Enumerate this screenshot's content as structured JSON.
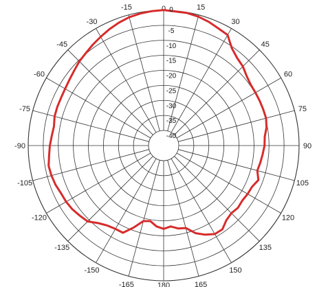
{
  "chart_data": {
    "type": "line",
    "subtype": "polar",
    "title": "",
    "grid": true,
    "colors": {
      "series": "#d72b2b",
      "grid": "#333333",
      "background": "#ffffff"
    },
    "angular_ticks": [
      {
        "angle": 0,
        "label": "0"
      },
      {
        "angle": 15,
        "label": "15"
      },
      {
        "angle": 30,
        "label": "30"
      },
      {
        "angle": 45,
        "label": "45"
      },
      {
        "angle": 60,
        "label": "60"
      },
      {
        "angle": 75,
        "label": "75"
      },
      {
        "angle": 90,
        "label": "90"
      },
      {
        "angle": 105,
        "label": "105"
      },
      {
        "angle": 120,
        "label": "120"
      },
      {
        "angle": 135,
        "label": "135"
      },
      {
        "angle": 150,
        "label": "150"
      },
      {
        "angle": 165,
        "label": "165"
      },
      {
        "angle": 180,
        "label": "180"
      },
      {
        "angle": -165,
        "label": "-165"
      },
      {
        "angle": -150,
        "label": "-150"
      },
      {
        "angle": -135,
        "label": "-135"
      },
      {
        "angle": -120,
        "label": "-120"
      },
      {
        "angle": -105,
        "label": "-105"
      },
      {
        "angle": -90,
        "label": "-90"
      },
      {
        "angle": -75,
        "label": "-75"
      },
      {
        "angle": -60,
        "label": "-60"
      },
      {
        "angle": -45,
        "label": "-45"
      },
      {
        "angle": -30,
        "label": "-30"
      },
      {
        "angle": -15,
        "label": "-15"
      }
    ],
    "radial_ticks": [
      {
        "value": 0,
        "label": "0"
      },
      {
        "value": -5,
        "label": "-5"
      },
      {
        "value": -10,
        "label": "-10"
      },
      {
        "value": -15,
        "label": "-15"
      },
      {
        "value": -20,
        "label": "-20"
      },
      {
        "value": -25,
        "label": "-25"
      },
      {
        "value": -30,
        "label": "-30"
      },
      {
        "value": -35,
        "label": "-35"
      },
      {
        "value": -40,
        "label": "-40"
      }
    ],
    "rlim": [
      -40,
      0
    ],
    "series": [
      {
        "angles": [
          0,
          10,
          15,
          20,
          25,
          30,
          35,
          40,
          45,
          50,
          55,
          60,
          65,
          70,
          75,
          80,
          85,
          90,
          95,
          100,
          105,
          110,
          115,
          120,
          125,
          130,
          135,
          140,
          145,
          150,
          155,
          160,
          165,
          170,
          175,
          180,
          185,
          190,
          195,
          200,
          205,
          210,
          215,
          220,
          225,
          230,
          235,
          240,
          245,
          250,
          255,
          260,
          265,
          270,
          275,
          280,
          285,
          290,
          295,
          300,
          305,
          310,
          315,
          320,
          325,
          330,
          335,
          340,
          345,
          350,
          355,
          360
        ],
        "values": [
          0.1,
          -0.2,
          -0.6,
          -1.2,
          -2.0,
          -2.5,
          -5.5,
          -7.0,
          -7.8,
          -9.0,
          -9.7,
          -9.8,
          -9.8,
          -9.8,
          -9.8,
          -10.3,
          -11.3,
          -11.5,
          -12.0,
          -12.4,
          -12.8,
          -11.5,
          -12.6,
          -12.8,
          -13.1,
          -12.8,
          -13.2,
          -12.6,
          -11.0,
          -11.0,
          -12.3,
          -14.0,
          -16.6,
          -17.0,
          -18.0,
          -17.3,
          -18.0,
          -19.5,
          -19.0,
          -16.0,
          -13.0,
          -13.0,
          -12.5,
          -11.3,
          -9.3,
          -8.7,
          -8.0,
          -7.6,
          -7.4,
          -6.8,
          -6.4,
          -6.2,
          -6.8,
          -7.2,
          -7.7,
          -8.0,
          -7.5,
          -7.4,
          -7.4,
          -7.2,
          -6.8,
          -6.2,
          -5.4,
          -4.8,
          -4.0,
          -3.2,
          -2.3,
          -1.5,
          -0.8,
          -0.4,
          -0.1,
          0.1
        ]
      }
    ]
  }
}
